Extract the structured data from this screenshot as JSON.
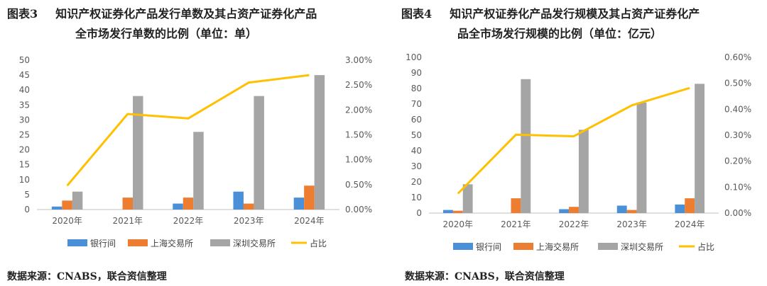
{
  "charts": [
    {
      "fig_label": "图表3",
      "title_line1": "知识产权证券化产品发行单数及其占资产证券化产品",
      "title_line2": "全市场发行单数的比例（单位：单）",
      "source": "数据来源：CNABS，联合资信整理"
    },
    {
      "fig_label": "图表4",
      "title_line1": "知识产权证券化产品发行规模及其占资产证券化产",
      "title_line2": "品全市场发行规模的比例（单位：亿元）",
      "source": "数据来源：CNABS，联合资信整理"
    }
  ],
  "chart_data": [
    {
      "type": "bar",
      "categories": [
        "2020年",
        "2021年",
        "2022年",
        "2023年",
        "2024年"
      ],
      "series": [
        {
          "name": "银行间",
          "kind": "bar",
          "color": "#4a90d9",
          "values": [
            1,
            0,
            2,
            6,
            4
          ]
        },
        {
          "name": "上海交易所",
          "kind": "bar",
          "color": "#ed7d31",
          "values": [
            3,
            4,
            4,
            2,
            8
          ]
        },
        {
          "name": "深圳交易所",
          "kind": "bar",
          "color": "#a5a5a5",
          "values": [
            6,
            38,
            26,
            38,
            45
          ]
        },
        {
          "name": "占比",
          "kind": "line",
          "axis": "right",
          "color": "#ffc000",
          "values": [
            0.48,
            1.92,
            1.83,
            2.55,
            2.7
          ]
        }
      ],
      "ylim": [
        0,
        50
      ],
      "yticks": [
        "0",
        "5",
        "10",
        "15",
        "20",
        "25",
        "30",
        "35",
        "40",
        "45",
        "50"
      ],
      "y2lim": [
        0,
        3
      ],
      "y2ticks": [
        "0.00%",
        "0.50%",
        "1.00%",
        "1.50%",
        "2.00%",
        "2.50%",
        "3.00%"
      ],
      "legend": "bottom",
      "grid": false
    },
    {
      "type": "bar",
      "categories": [
        "2020年",
        "2021年",
        "2022年",
        "2023年",
        "2024年"
      ],
      "series": [
        {
          "name": "银行间",
          "kind": "bar",
          "color": "#4a90d9",
          "values": [
            2,
            0,
            2.5,
            4.8,
            5.5
          ]
        },
        {
          "name": "上海交易所",
          "kind": "bar",
          "color": "#ed7d31",
          "values": [
            1.5,
            9.5,
            4,
            2,
            9.5
          ]
        },
        {
          "name": "深圳交易所",
          "kind": "bar",
          "color": "#a5a5a5",
          "values": [
            18.5,
            86,
            53.5,
            71,
            83
          ]
        },
        {
          "name": "占比",
          "kind": "line",
          "axis": "right",
          "color": "#ffc000",
          "values": [
            0.075,
            0.302,
            0.296,
            0.415,
            0.482
          ]
        }
      ],
      "ylim": [
        0,
        100
      ],
      "yticks": [
        "0",
        "10",
        "20",
        "30",
        "40",
        "50",
        "60",
        "70",
        "80",
        "90",
        "100"
      ],
      "y2lim": [
        0,
        0.6
      ],
      "y2ticks": [
        "0.00%",
        "0.10%",
        "0.20%",
        "0.30%",
        "0.40%",
        "0.50%",
        "0.60%"
      ],
      "legend": "bottom",
      "grid": false
    }
  ]
}
